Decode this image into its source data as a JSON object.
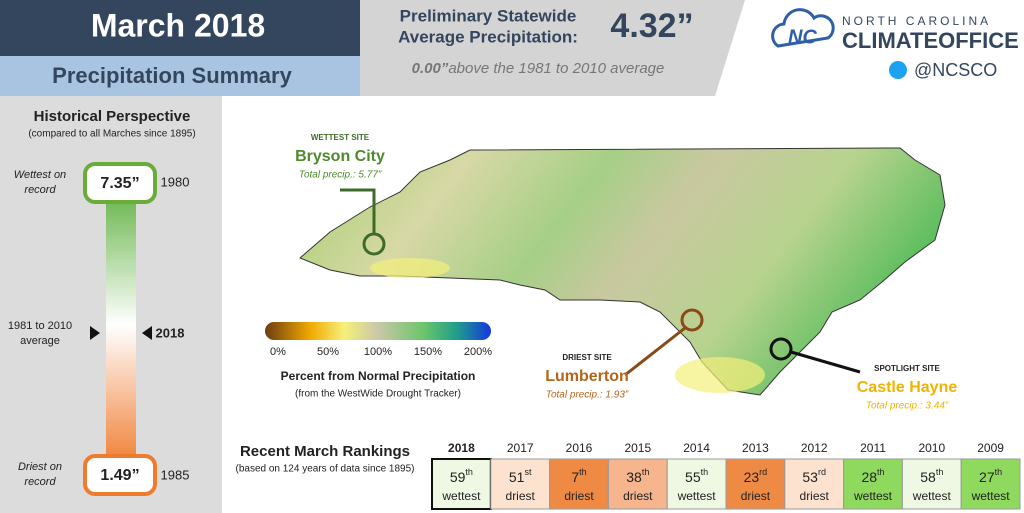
{
  "header": {
    "title": "March 2018",
    "subtitle": "Precipitation Summary",
    "statewide_label": [
      "Preliminary Statewide",
      "Average Precipitation:"
    ],
    "statewide_value": "4.32”",
    "anomaly_value": "0.00”",
    "anomaly_text": "above the 1981 to 2010 average"
  },
  "logo": {
    "line1": "NORTH CAROLINA",
    "line2": "CLIMATEOFFICE",
    "twitter": "@NCSCO"
  },
  "historical": {
    "title": "Historical Perspective",
    "subtitle": "(compared to all Marches since 1895)",
    "wettest_label": [
      "Wettest on",
      "record"
    ],
    "wettest_value": "7.35”",
    "wettest_year": "1980",
    "average_label": [
      "1981 to 2010",
      "average"
    ],
    "current_year": "2018",
    "driest_label": [
      "Driest on",
      "record"
    ],
    "driest_value": "1.49”",
    "driest_year": "1985"
  },
  "map": {
    "sites": [
      {
        "role": "WETTEST SITE",
        "name": "Bryson City",
        "total": "Total precip.: 5.77”",
        "color": "#3f6b2a"
      },
      {
        "role": "DRIEST SITE",
        "name": "Lumberton",
        "total": "Total precip.: 1.93”",
        "color": "#8a4a17"
      },
      {
        "role": "SPOTLIGHT SITE",
        "name": "Castle Hayne",
        "total": "Total precip.: 3.44”",
        "color": "#111111"
      }
    ],
    "legend": {
      "ticks": [
        "0%",
        "50%",
        "100%",
        "150%",
        "200%"
      ],
      "title": "Percent from Normal Precipitation",
      "source": "(from the WestWide Drought Tracker)"
    }
  },
  "rankings": {
    "title": "Recent March Rankings",
    "subtitle": "(based on 124 years of data since 1895)",
    "columns": [
      {
        "year": "2018",
        "rank": "59",
        "suffix": "th",
        "label": "wettest",
        "color": "#eef8e2"
      },
      {
        "year": "2017",
        "rank": "51",
        "suffix": "st",
        "label": "driest",
        "color": "#fde2cf"
      },
      {
        "year": "2016",
        "rank": "7",
        "suffix": "th",
        "label": "driest",
        "color": "#ef8a45"
      },
      {
        "year": "2015",
        "rank": "38",
        "suffix": "th",
        "label": "driest",
        "color": "#f6b58c"
      },
      {
        "year": "2014",
        "rank": "55",
        "suffix": "th",
        "label": "wettest",
        "color": "#eef8e2"
      },
      {
        "year": "2013",
        "rank": "23",
        "suffix": "rd",
        "label": "driest",
        "color": "#ef8a45"
      },
      {
        "year": "2012",
        "rank": "53",
        "suffix": "rd",
        "label": "driest",
        "color": "#fde2cf"
      },
      {
        "year": "2011",
        "rank": "28",
        "suffix": "th",
        "label": "wettest",
        "color": "#8fd95e"
      },
      {
        "year": "2010",
        "rank": "58",
        "suffix": "th",
        "label": "wettest",
        "color": "#eef8e2"
      },
      {
        "year": "2009",
        "rank": "27",
        "suffix": "th",
        "label": "wettest",
        "color": "#8fd95e"
      }
    ]
  }
}
